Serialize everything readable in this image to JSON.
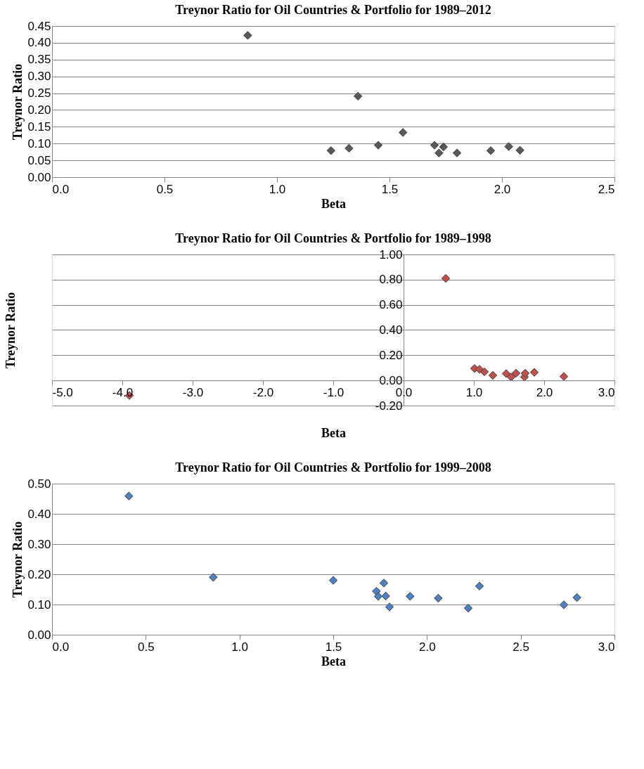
{
  "chart_data": [
    {
      "type": "scatter",
      "title": "Treynor Ratio for Oil Countries & Portfolio for 1989–2012",
      "xlabel": "Beta",
      "ylabel": "Treynor Ratio",
      "marker": "diamond",
      "grid": "y",
      "x": [
        0.87,
        1.24,
        1.32,
        1.36,
        1.45,
        1.56,
        1.7,
        1.72,
        1.74,
        1.8,
        1.95,
        2.03,
        2.08
      ],
      "series": [
        {
          "color": "#595959",
          "values": [
            0.422,
            0.079,
            0.086,
            0.241,
            0.095,
            0.133,
            0.095,
            0.072,
            0.09,
            0.072,
            0.079,
            0.091,
            0.08
          ]
        }
      ],
      "xlim": [
        0,
        2.5
      ],
      "xticks": [
        {
          "value": 0,
          "label": "0.0"
        },
        0.5,
        {
          "value": 1,
          "label": "1.0"
        },
        1.5,
        {
          "value": 2,
          "label": "2.0"
        },
        2.5
      ],
      "ylim": [
        0,
        0.45
      ],
      "yticks": [
        {
          "value": 0,
          "label": "0.00"
        },
        {
          "value": 0.05,
          "label": "0.05"
        },
        {
          "value": 0.1,
          "label": "0.10"
        },
        {
          "value": 0.15,
          "label": "0.15"
        },
        {
          "value": 0.2,
          "label": "0.20"
        },
        {
          "value": 0.25,
          "label": "0.25"
        },
        {
          "value": 0.3,
          "label": "0.30"
        },
        {
          "value": 0.35,
          "label": "0.35"
        },
        {
          "value": 0.4,
          "label": "0.40"
        },
        {
          "value": 0.45,
          "label": "0.45"
        }
      ]
    },
    {
      "type": "scatter",
      "title": "Treynor Ratio for Oil Countries & Portfolio for 1989–1998",
      "xlabel": "Beta",
      "ylabel": "Treynor Ratio",
      "marker": "diamond",
      "grid": "y",
      "x": [
        -3.9,
        0.6,
        1.01,
        1.08,
        1.15,
        1.27,
        1.46,
        1.53,
        1.6,
        1.72,
        1.73,
        1.86,
        2.28
      ],
      "series": [
        {
          "color": "#c0504d",
          "values": [
            -0.12,
            0.81,
            0.095,
            0.088,
            0.068,
            0.04,
            0.054,
            0.027,
            0.057,
            0.027,
            0.057,
            0.064,
            0.031
          ]
        }
      ],
      "xlim": [
        -5,
        3
      ],
      "xticks": [
        {
          "value": -5,
          "label": "-5.0"
        },
        {
          "value": -4,
          "label": "-4.0"
        },
        {
          "value": -3,
          "label": "-3.0"
        },
        {
          "value": -2,
          "label": "-2.0"
        },
        {
          "value": -1,
          "label": "-1.0"
        },
        {
          "value": 0,
          "label": "0.0"
        },
        {
          "value": 1,
          "label": "1.0"
        },
        {
          "value": 2,
          "label": "2.0"
        },
        {
          "value": 3,
          "label": "3.0"
        }
      ],
      "ylim": [
        -0.2,
        1.0
      ],
      "yticks": [
        {
          "value": -0.2,
          "label": "-0.20"
        },
        {
          "value": 0,
          "label": "0.00"
        },
        {
          "value": 0.2,
          "label": "0.20"
        },
        {
          "value": 0.4,
          "label": "0.40"
        },
        {
          "value": 0.6,
          "label": "0.60"
        },
        {
          "value": 0.8,
          "label": "0.80"
        },
        {
          "value": 1,
          "label": "1.00"
        }
      ]
    },
    {
      "type": "scatter",
      "title": "Treynor Ratio for Oil Countries & Portfolio for 1999–2008",
      "xlabel": "Beta",
      "ylabel": "Treynor Ratio",
      "marker": "diamond",
      "grid": "y",
      "x": [
        0.41,
        0.86,
        1.5,
        1.73,
        1.74,
        1.77,
        1.78,
        1.8,
        1.91,
        2.06,
        2.22,
        2.28,
        2.73,
        2.8
      ],
      "series": [
        {
          "color": "#4f81bd",
          "values": [
            0.459,
            0.19,
            0.18,
            0.144,
            0.127,
            0.171,
            0.128,
            0.092,
            0.127,
            0.121,
            0.088,
            0.161,
            0.099,
            0.123
          ]
        }
      ],
      "xlim": [
        0,
        3
      ],
      "xticks": [
        {
          "value": 0,
          "label": "0.0"
        },
        0.5,
        {
          "value": 1,
          "label": "1.0"
        },
        1.5,
        {
          "value": 2,
          "label": "2.0"
        },
        2.5,
        {
          "value": 3,
          "label": "3.0"
        }
      ],
      "ylim": [
        0,
        0.5
      ],
      "yticks": [
        {
          "value": 0,
          "label": "0.00"
        },
        {
          "value": 0.1,
          "label": "0.10"
        },
        {
          "value": 0.2,
          "label": "0.20"
        },
        {
          "value": 0.3,
          "label": "0.30"
        },
        {
          "value": 0.4,
          "label": "0.40"
        },
        {
          "value": 0.5,
          "label": "0.50"
        }
      ]
    }
  ]
}
